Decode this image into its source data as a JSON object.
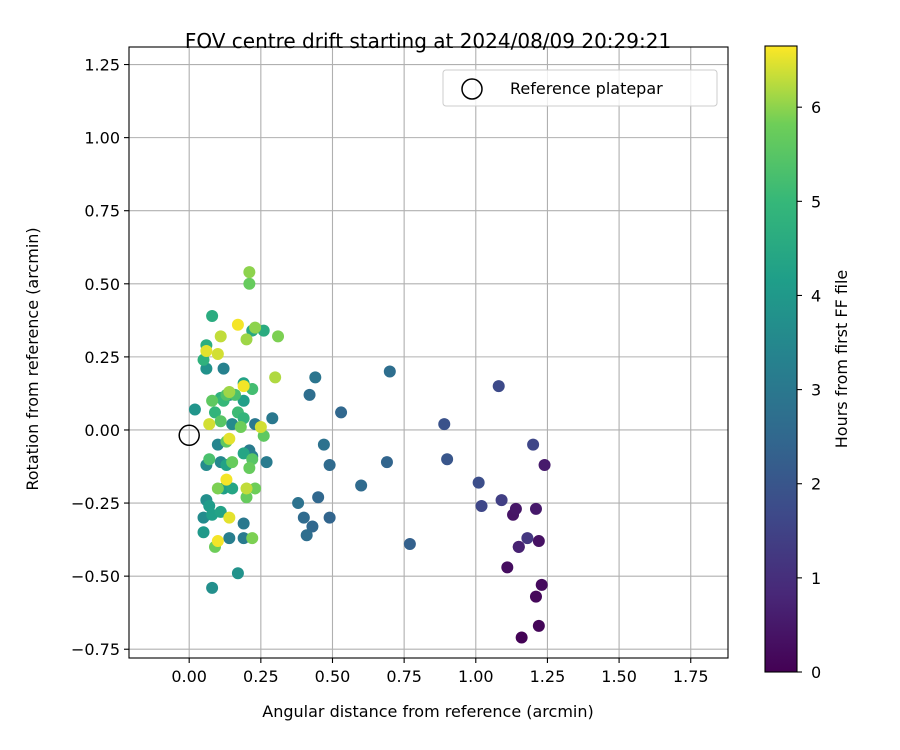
{
  "chart_data": {
    "type": "scatter",
    "title": "FOV centre drift starting at 2024/08/09 20:29:21",
    "xlabel": "Angular distance from reference (arcmin)",
    "ylabel": "Rotation from reference (arcmin)",
    "xlim": [
      -0.21,
      1.88
    ],
    "ylim": [
      -0.78,
      1.31
    ],
    "x_ticks": [
      "0.00",
      "0.25",
      "0.50",
      "0.75",
      "1.00",
      "1.25",
      "1.50",
      "1.75"
    ],
    "y_ticks": [
      "−0.75",
      "−0.50",
      "−0.25",
      "0.00",
      "0.25",
      "0.50",
      "0.75",
      "1.00",
      "1.25"
    ],
    "grid": true,
    "legend": {
      "placement": "top-right",
      "label": "Reference platepar",
      "marker": "open-circle"
    },
    "reference_point": {
      "x": 0.0,
      "y": 0.0
    },
    "colorbar": {
      "label": "Hours from first FF file",
      "range": [
        0,
        6.65
      ],
      "ticks": [
        "0",
        "1",
        "2",
        "3",
        "4",
        "5",
        "6"
      ],
      "colormap": "viridis"
    },
    "points": [
      {
        "x": 1.16,
        "y": -0.71,
        "c": 0.05
      },
      {
        "x": 1.22,
        "y": -0.67,
        "c": 0.1
      },
      {
        "x": 1.21,
        "y": -0.57,
        "c": 0.15
      },
      {
        "x": 1.23,
        "y": -0.53,
        "c": 0.2
      },
      {
        "x": 1.11,
        "y": -0.47,
        "c": 0.25
      },
      {
        "x": 1.15,
        "y": -0.4,
        "c": 0.3
      },
      {
        "x": 1.22,
        "y": -0.38,
        "c": 0.35
      },
      {
        "x": 1.13,
        "y": -0.29,
        "c": 0.4
      },
      {
        "x": 1.14,
        "y": -0.27,
        "c": 0.45
      },
      {
        "x": 1.21,
        "y": -0.27,
        "c": 0.5
      },
      {
        "x": 1.24,
        "y": -0.12,
        "c": 0.55
      },
      {
        "x": 1.15,
        "y": -0.4,
        "c": 0.7
      },
      {
        "x": 1.18,
        "y": -0.37,
        "c": 1.2
      },
      {
        "x": 1.09,
        "y": -0.24,
        "c": 1.4
      },
      {
        "x": 1.02,
        "y": -0.26,
        "c": 1.6
      },
      {
        "x": 1.01,
        "y": -0.18,
        "c": 1.8
      },
      {
        "x": 1.2,
        "y": -0.05,
        "c": 1.6
      },
      {
        "x": 1.08,
        "y": 0.15,
        "c": 1.7
      },
      {
        "x": 0.89,
        "y": 0.02,
        "c": 1.9
      },
      {
        "x": 0.9,
        "y": -0.1,
        "c": 2.0
      },
      {
        "x": 0.77,
        "y": -0.39,
        "c": 2.3
      },
      {
        "x": 0.69,
        "y": -0.11,
        "c": 2.4
      },
      {
        "x": 0.6,
        "y": -0.19,
        "c": 2.6
      },
      {
        "x": 0.7,
        "y": 0.2,
        "c": 2.7
      },
      {
        "x": 0.53,
        "y": 0.06,
        "c": 2.5
      },
      {
        "x": 0.49,
        "y": -0.3,
        "c": 2.4
      },
      {
        "x": 0.49,
        "y": -0.12,
        "c": 2.6
      },
      {
        "x": 0.47,
        "y": -0.05,
        "c": 2.8
      },
      {
        "x": 0.45,
        "y": -0.23,
        "c": 2.5
      },
      {
        "x": 0.44,
        "y": 0.18,
        "c": 2.9
      },
      {
        "x": 0.42,
        "y": 0.12,
        "c": 2.7
      },
      {
        "x": 0.43,
        "y": -0.33,
        "c": 2.5
      },
      {
        "x": 0.4,
        "y": -0.3,
        "c": 2.6
      },
      {
        "x": 0.41,
        "y": -0.36,
        "c": 2.7
      },
      {
        "x": 0.38,
        "y": -0.25,
        "c": 2.8
      },
      {
        "x": 0.29,
        "y": 0.04,
        "c": 3.0
      },
      {
        "x": 0.27,
        "y": -0.11,
        "c": 3.1
      },
      {
        "x": 0.23,
        "y": 0.02,
        "c": 3.0
      },
      {
        "x": 0.21,
        "y": -0.07,
        "c": 3.1
      },
      {
        "x": 0.22,
        "y": -0.09,
        "c": 3.2
      },
      {
        "x": 0.19,
        "y": -0.32,
        "c": 3.0
      },
      {
        "x": 0.19,
        "y": -0.37,
        "c": 3.1
      },
      {
        "x": 0.14,
        "y": -0.37,
        "c": 3.2
      },
      {
        "x": 0.17,
        "y": -0.49,
        "c": 3.8
      },
      {
        "x": 0.08,
        "y": -0.54,
        "c": 3.7
      },
      {
        "x": 0.14,
        "y": 0.12,
        "c": 3.4
      },
      {
        "x": 0.15,
        "y": 0.02,
        "c": 3.6
      },
      {
        "x": 0.1,
        "y": -0.05,
        "c": 3.4
      },
      {
        "x": 0.12,
        "y": 0.21,
        "c": 3.3
      },
      {
        "x": 0.11,
        "y": -0.11,
        "c": 3.5
      },
      {
        "x": 0.06,
        "y": -0.12,
        "c": 3.6
      },
      {
        "x": 0.06,
        "y": -0.24,
        "c": 3.7
      },
      {
        "x": 0.05,
        "y": -0.3,
        "c": 3.6
      },
      {
        "x": 0.06,
        "y": 0.21,
        "c": 3.8
      },
      {
        "x": 0.02,
        "y": 0.07,
        "c": 3.9
      },
      {
        "x": 0.05,
        "y": -0.35,
        "c": 4.0
      },
      {
        "x": 0.07,
        "y": -0.26,
        "c": 4.1
      },
      {
        "x": 0.08,
        "y": -0.29,
        "c": 4.2
      },
      {
        "x": 0.11,
        "y": -0.28,
        "c": 4.3
      },
      {
        "x": 0.12,
        "y": -0.2,
        "c": 4.2
      },
      {
        "x": 0.15,
        "y": -0.2,
        "c": 4.4
      },
      {
        "x": 0.13,
        "y": -0.12,
        "c": 4.3
      },
      {
        "x": 0.19,
        "y": -0.08,
        "c": 4.4
      },
      {
        "x": 0.19,
        "y": 0.1,
        "c": 4.2
      },
      {
        "x": 0.19,
        "y": 0.16,
        "c": 4.3
      },
      {
        "x": 0.22,
        "y": 0.34,
        "c": 4.5
      },
      {
        "x": 0.26,
        "y": 0.34,
        "c": 4.6
      },
      {
        "x": 0.08,
        "y": 0.39,
        "c": 4.6
      },
      {
        "x": 0.06,
        "y": 0.29,
        "c": 4.7
      },
      {
        "x": 0.05,
        "y": 0.24,
        "c": 4.8
      },
      {
        "x": 0.09,
        "y": 0.06,
        "c": 4.9
      },
      {
        "x": 0.11,
        "y": 0.11,
        "c": 4.8
      },
      {
        "x": 0.12,
        "y": 0.1,
        "c": 5.0
      },
      {
        "x": 0.17,
        "y": 0.06,
        "c": 5.1
      },
      {
        "x": 0.19,
        "y": 0.04,
        "c": 4.9
      },
      {
        "x": 0.22,
        "y": 0.14,
        "c": 5.2
      },
      {
        "x": 0.16,
        "y": 0.12,
        "c": 5.3
      },
      {
        "x": 0.13,
        "y": 0.12,
        "c": 5.4
      },
      {
        "x": 0.07,
        "y": -0.1,
        "c": 5.3
      },
      {
        "x": 0.08,
        "y": 0.1,
        "c": 5.6
      },
      {
        "x": 0.11,
        "y": 0.03,
        "c": 5.5
      },
      {
        "x": 0.13,
        "y": -0.04,
        "c": 5.6
      },
      {
        "x": 0.15,
        "y": -0.11,
        "c": 5.7
      },
      {
        "x": 0.18,
        "y": 0.01,
        "c": 5.8
      },
      {
        "x": 0.22,
        "y": -0.1,
        "c": 5.5
      },
      {
        "x": 0.21,
        "y": -0.13,
        "c": 5.7
      },
      {
        "x": 0.26,
        "y": -0.02,
        "c": 5.6
      },
      {
        "x": 0.23,
        "y": -0.2,
        "c": 5.8
      },
      {
        "x": 0.2,
        "y": -0.23,
        "c": 5.7
      },
      {
        "x": 0.1,
        "y": -0.2,
        "c": 5.9
      },
      {
        "x": 0.09,
        "y": -0.4,
        "c": 5.8
      },
      {
        "x": 0.22,
        "y": -0.37,
        "c": 5.9
      },
      {
        "x": 0.21,
        "y": 0.5,
        "c": 5.7
      },
      {
        "x": 0.21,
        "y": 0.54,
        "c": 6.0
      },
      {
        "x": 0.2,
        "y": 0.31,
        "c": 6.1
      },
      {
        "x": 0.23,
        "y": 0.35,
        "c": 6.0
      },
      {
        "x": 0.31,
        "y": 0.32,
        "c": 5.9
      },
      {
        "x": 0.3,
        "y": 0.18,
        "c": 6.2
      },
      {
        "x": 0.11,
        "y": 0.32,
        "c": 6.3
      },
      {
        "x": 0.1,
        "y": 0.26,
        "c": 6.4
      },
      {
        "x": 0.06,
        "y": 0.27,
        "c": 6.5
      },
      {
        "x": 0.19,
        "y": 0.15,
        "c": 6.6
      },
      {
        "x": 0.14,
        "y": 0.13,
        "c": 6.1
      },
      {
        "x": 0.07,
        "y": 0.02,
        "c": 6.4
      },
      {
        "x": 0.14,
        "y": -0.03,
        "c": 6.5
      },
      {
        "x": 0.13,
        "y": -0.17,
        "c": 6.6
      },
      {
        "x": 0.2,
        "y": -0.2,
        "c": 6.3
      },
      {
        "x": 0.14,
        "y": -0.3,
        "c": 6.5
      },
      {
        "x": 0.1,
        "y": -0.38,
        "c": 6.6
      },
      {
        "x": 0.17,
        "y": 0.36,
        "c": 6.6
      },
      {
        "x": 0.25,
        "y": 0.01,
        "c": 6.4
      }
    ]
  }
}
